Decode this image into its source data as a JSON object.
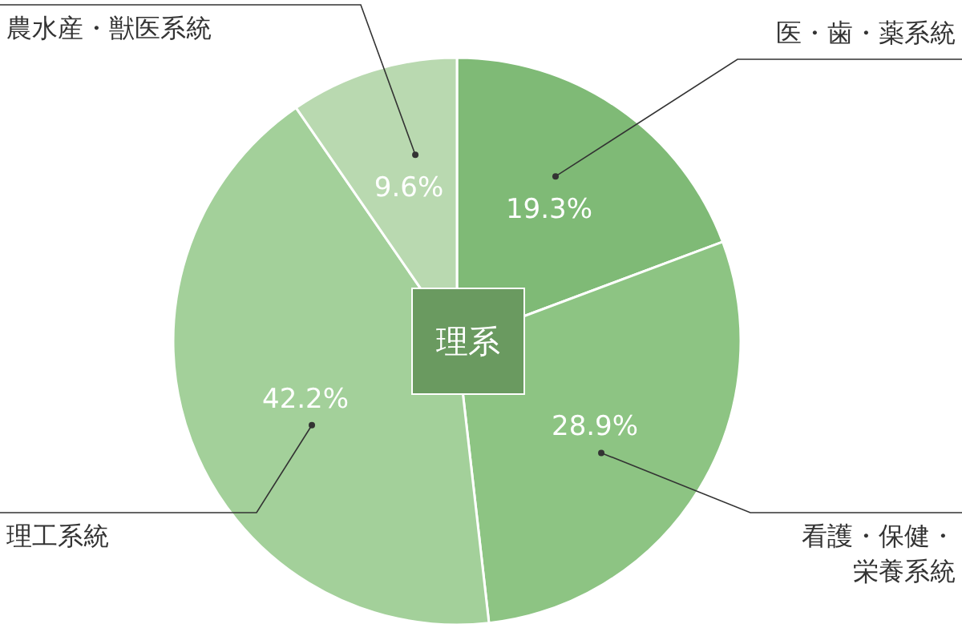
{
  "chart_data": {
    "type": "pie",
    "title": "理系",
    "categories": [
      "医・歯・薬系統",
      "看護・保健・栄養系統",
      "理工系統",
      "農水産・獣医系統"
    ],
    "values": [
      19.3,
      28.9,
      42.2,
      9.6
    ],
    "colors": [
      "#7fba76",
      "#8dc483",
      "#a3d09a",
      "#b9d9b0"
    ],
    "value_labels": [
      "19.3%",
      "28.9%",
      "42.2%",
      "9.6%"
    ]
  }
}
